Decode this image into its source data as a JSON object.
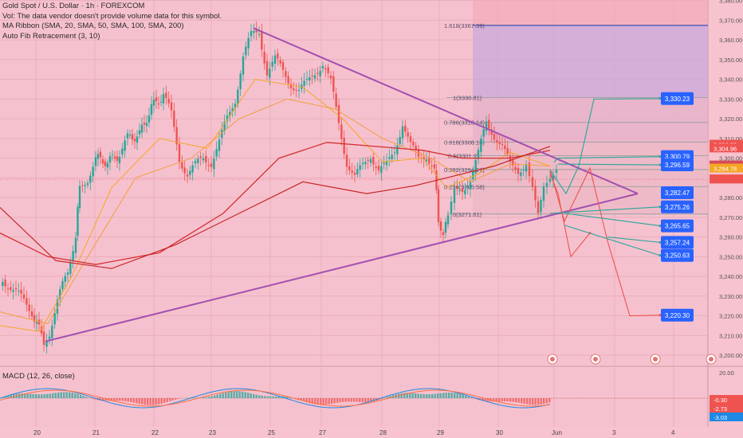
{
  "header": {
    "title": "Gold Spot / U.S. Dollar · 1h · FOREXCOM",
    "volume_note": "Vol: The data vendor doesn't provide volume data for this symbol.",
    "ma_ribbon": "MA Ribbon (SMA, 20, SMA, 50, SMA, 100, SMA, 200)",
    "fib": "Auto Fib Retracement (3, 10)"
  },
  "macd_label": "MACD (12, 26, close)",
  "colors": {
    "background": "#f7c3cf",
    "up": "#26a69a",
    "down": "#ef5350",
    "trendline": "#a24fb0",
    "ma_short": "#f5a623",
    "ma_long": "#d32f2f",
    "projection_up": "#26a69a",
    "projection_down": "#ef5350",
    "fib_zone_upper": "#c9a8d9",
    "fib_line": "#3f51b5"
  },
  "chart_data": {
    "type": "candlestick",
    "y_axis": {
      "min": 3200,
      "max": 3380,
      "ticks": [
        "3,380.00",
        "3,370.00",
        "3,360.00",
        "3,350.00",
        "3,340.00",
        "3,330.00",
        "3,320.00",
        "3,310.00",
        "3,300.00",
        "3,290.00",
        "3,280.00",
        "3,270.00",
        "3,260.00",
        "3,250.00",
        "3,240.00",
        "3,230.00",
        "3,220.00",
        "3,210.00",
        "3,200.00"
      ]
    },
    "x_axis": {
      "ticks": [
        "20",
        "21",
        "22",
        "23",
        "25",
        "27",
        "28",
        "29",
        "30",
        "Jun",
        "3",
        "4"
      ]
    },
    "fib_levels": [
      {
        "label": "1.618(3367.39)",
        "value": 3367.39
      },
      {
        "label": "1(3330.81)",
        "value": 3330.81
      },
      {
        "label": "0.786(3318.14)",
        "value": 3318.14
      },
      {
        "label": "0.618(3308.18)",
        "value": 3308.18
      },
      {
        "label": "0.5(3301.2)",
        "value": 3301.2
      },
      {
        "label": "0.382(3294.21)",
        "value": 3294.21
      },
      {
        "label": "0.236(3285.58)",
        "value": 3285.58
      },
      {
        "label": "0(3271.61)",
        "value": 3271.61
      }
    ],
    "price_labels": [
      {
        "text": "3,306.89",
        "value": 3306.89,
        "color": "#ef5350"
      },
      {
        "text": "3,304.96",
        "value": 3304.96,
        "color": "#ef5350"
      },
      {
        "text": "3,296.34",
        "value": 3296.34,
        "color": "#d84a5a"
      },
      {
        "text": "3,294.78",
        "value": 3294.78,
        "color": "#f5a623"
      },
      {
        "text": "3,289.24",
        "value": 3289.24,
        "color": "#ef5350"
      }
    ],
    "target_labels": [
      {
        "text": "3,330.23",
        "value": 3330.23
      },
      {
        "text": "3,300.79",
        "value": 3300.79
      },
      {
        "text": "3,296.59",
        "value": 3296.59
      },
      {
        "text": "3,282.47",
        "value": 3282.47
      },
      {
        "text": "3,275.26",
        "value": 3275.26
      },
      {
        "text": "3,265.65",
        "value": 3265.65
      },
      {
        "text": "3,257.24",
        "value": 3257.24
      },
      {
        "text": "3,250.63",
        "value": 3250.63
      },
      {
        "text": "3,220.30",
        "value": 3220.3
      }
    ],
    "macd": {
      "axis_ticks": [
        "20.00"
      ],
      "value_labels": [
        {
          "text": "-0.30",
          "color": "#ef5350"
        },
        {
          "text": "-2.73",
          "color": "#ef5350"
        },
        {
          "text": "-3.03",
          "color": "#1e88e5"
        }
      ]
    },
    "grid": true
  }
}
